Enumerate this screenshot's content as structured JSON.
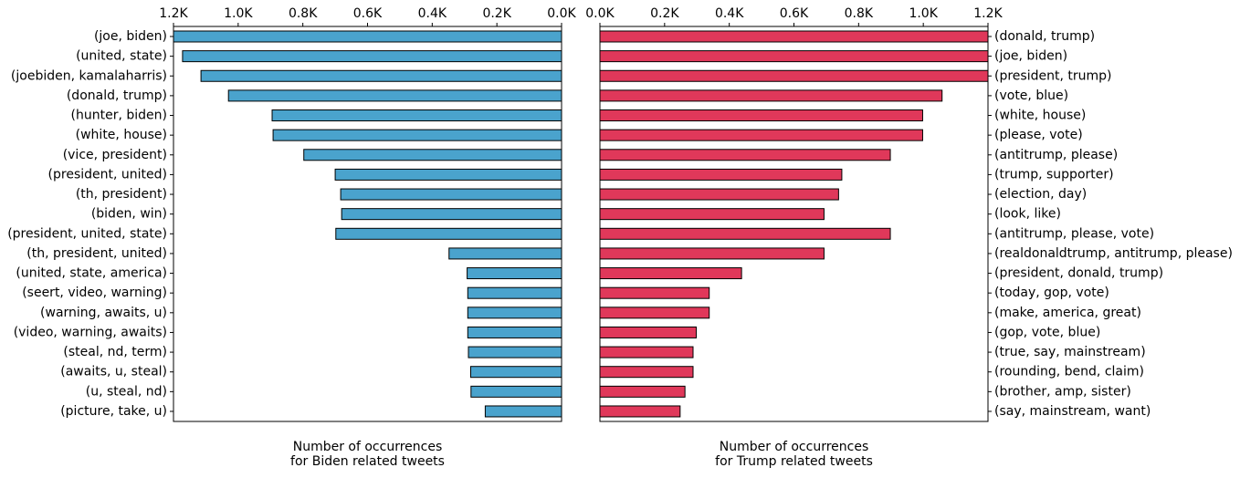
{
  "colors": {
    "biden_bar": "#4aa3cd",
    "trump_bar": "#e0385a"
  },
  "chart_data": [
    {
      "type": "bar",
      "orientation": "horizontal",
      "x_direction": "reversed",
      "categories": [
        "(joe, biden)",
        "(united, state)",
        "(joebiden, kamalaharris)",
        "(donald, trump)",
        "(hunter, biden)",
        "(white, house)",
        "(vice, president)",
        "(president, united)",
        "(th, president)",
        "(biden, win)",
        "(president, united, state)",
        "(th, president, united)",
        "(united, state, america)",
        "(seert, video, warning)",
        "(warning, awaits, u)",
        "(video, warning, awaits)",
        "(steal, nd, term)",
        "(awaits, u, steal)",
        "(u, steal, nd)",
        "(picture, take, u)"
      ],
      "values": [
        1200,
        1172,
        1115,
        1030,
        895,
        892,
        797,
        700,
        683,
        680,
        698,
        348,
        292,
        290,
        290,
        290,
        288,
        281,
        280,
        236
      ],
      "xlim": [
        0,
        1200
      ],
      "xticks": [
        "1.2K",
        "1.0K",
        "0.8K",
        "0.6K",
        "0.4K",
        "0.2K",
        "0.0K"
      ],
      "xlabel": [
        "Number of occurrences",
        "for Biden related tweets"
      ],
      "legend": "none",
      "grid": false
    },
    {
      "type": "bar",
      "orientation": "horizontal",
      "x_direction": "normal",
      "categories": [
        "(donald, trump)",
        "(joe, biden)",
        "(president, trump)",
        "(vote, blue)",
        "(white, house)",
        "(please, vote)",
        "(antitrump, please)",
        "(trump, supporter)",
        "(election, day)",
        "(look, like)",
        "(antitrump, please, vote)",
        "(realdonaldtrump, antitrump, please)",
        "(president, donald, trump)",
        "(today, gop, vote)",
        "(make, america, great)",
        "(gop, vote, blue)",
        "(true, say, mainstream)",
        "(rounding, bend, claim)",
        "(brother, amp, sister)",
        "(say, mainstream, want)"
      ],
      "values": [
        1200,
        1200,
        1200,
        1058,
        998,
        998,
        898,
        748,
        738,
        693,
        898,
        693,
        438,
        338,
        338,
        298,
        288,
        288,
        263,
        248
      ],
      "xlim": [
        0,
        1200
      ],
      "xticks": [
        "0.0K",
        "0.2K",
        "0.4K",
        "0.6K",
        "0.8K",
        "1.0K",
        "1.2K"
      ],
      "xlabel": [
        "Number of occurrences",
        "for Trump related tweets"
      ],
      "legend": "none",
      "grid": false
    }
  ]
}
